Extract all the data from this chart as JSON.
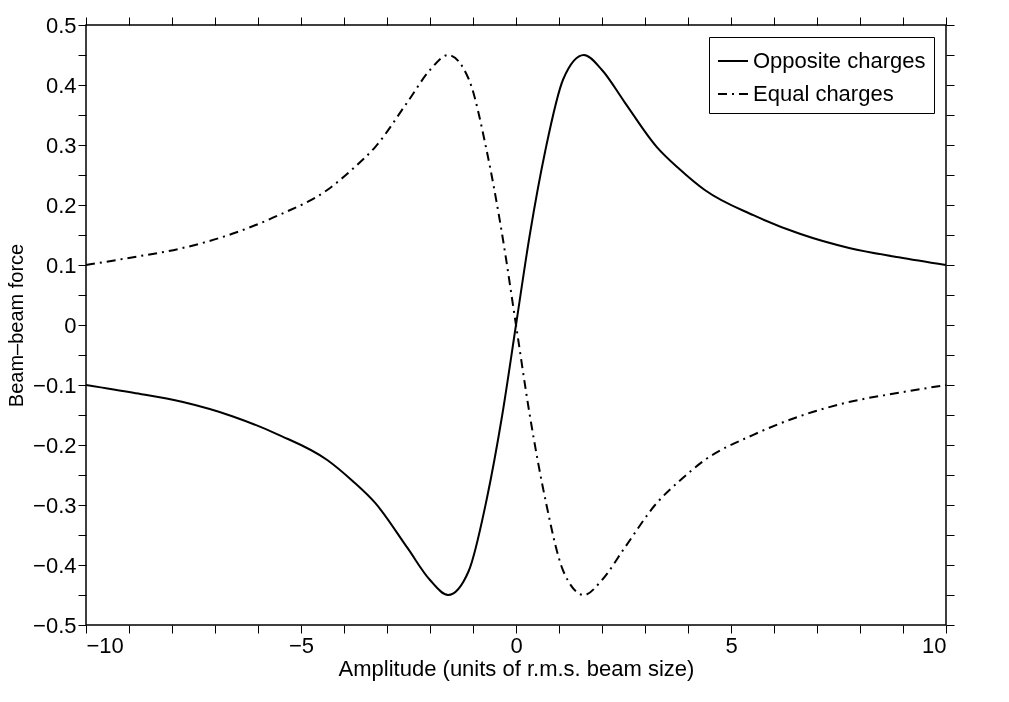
{
  "chart_data": {
    "type": "line",
    "xlabel": "Amplitude (units of r.m.s. beam size)",
    "ylabel": "Beam–beam force",
    "x": [
      -10,
      -8.9,
      -7.77,
      -6.6,
      -5.52,
      -4.39,
      -3.8,
      -3.27,
      -2.52,
      -2.0,
      -1.58,
      -1.1,
      -0.68,
      -0.32,
      0,
      0.32,
      0.68,
      1.1,
      1.58,
      2.0,
      2.52,
      3.27,
      3.8,
      4.39,
      5.52,
      6.6,
      7.77,
      8.9,
      10
    ],
    "series": [
      {
        "name": "Opposite charges",
        "color": "#000000",
        "line_style": "solid",
        "values": [
          -0.1,
          -0.113,
          -0.128,
          -0.152,
          -0.183,
          -0.225,
          -0.26,
          -0.297,
          -0.372,
          -0.425,
          -0.45,
          -0.41,
          -0.29,
          -0.15,
          0,
          0.15,
          0.29,
          0.41,
          0.45,
          0.425,
          0.372,
          0.297,
          0.26,
          0.225,
          0.183,
          0.152,
          0.128,
          0.113,
          0.1
        ]
      },
      {
        "name": "Equal charges",
        "color": "#000000",
        "line_style": "dashdot",
        "values": [
          0.1,
          0.113,
          0.128,
          0.152,
          0.183,
          0.225,
          0.26,
          0.297,
          0.372,
          0.425,
          0.45,
          0.41,
          0.29,
          0.15,
          0,
          -0.15,
          -0.29,
          -0.41,
          -0.45,
          -0.425,
          -0.372,
          -0.297,
          -0.26,
          -0.225,
          -0.183,
          -0.152,
          -0.128,
          -0.113,
          -0.1
        ]
      }
    ],
    "xlim": [
      -10,
      10
    ],
    "xticks": [
      -10,
      {
        "value": -9,
        "label": null
      },
      {
        "value": -8,
        "label": null
      },
      {
        "value": -7,
        "label": null
      },
      {
        "value": -6,
        "label": null
      },
      -5,
      {
        "value": -4,
        "label": null
      },
      {
        "value": -3,
        "label": null
      },
      {
        "value": -2,
        "label": null
      },
      {
        "value": -1,
        "label": null
      },
      0,
      {
        "value": 1,
        "label": null
      },
      {
        "value": 2,
        "label": null
      },
      {
        "value": 3,
        "label": null
      },
      {
        "value": 4,
        "label": null
      },
      5,
      {
        "value": 6,
        "label": null
      },
      {
        "value": 7,
        "label": null
      },
      {
        "value": 8,
        "label": null
      },
      {
        "value": 9,
        "label": null
      },
      10
    ],
    "ylim": [
      -0.5,
      0.5
    ],
    "yticks": [
      -0.5,
      {
        "value": -0.45,
        "label": null
      },
      -0.4,
      {
        "value": -0.35,
        "label": null
      },
      -0.3,
      {
        "value": -0.25,
        "label": null
      },
      -0.2,
      {
        "value": -0.15,
        "label": null
      },
      -0.1,
      {
        "value": -0.05,
        "label": null
      },
      0,
      {
        "value": 0.05,
        "label": null
      },
      0.1,
      {
        "value": 0.15,
        "label": null
      },
      0.2,
      {
        "value": 0.25,
        "label": null
      },
      0.3,
      {
        "value": 0.35,
        "label": null
      },
      0.4,
      {
        "value": 0.45,
        "label": null
      },
      0.5
    ],
    "grid": false,
    "legend": "top right",
    "marker": "none"
  }
}
